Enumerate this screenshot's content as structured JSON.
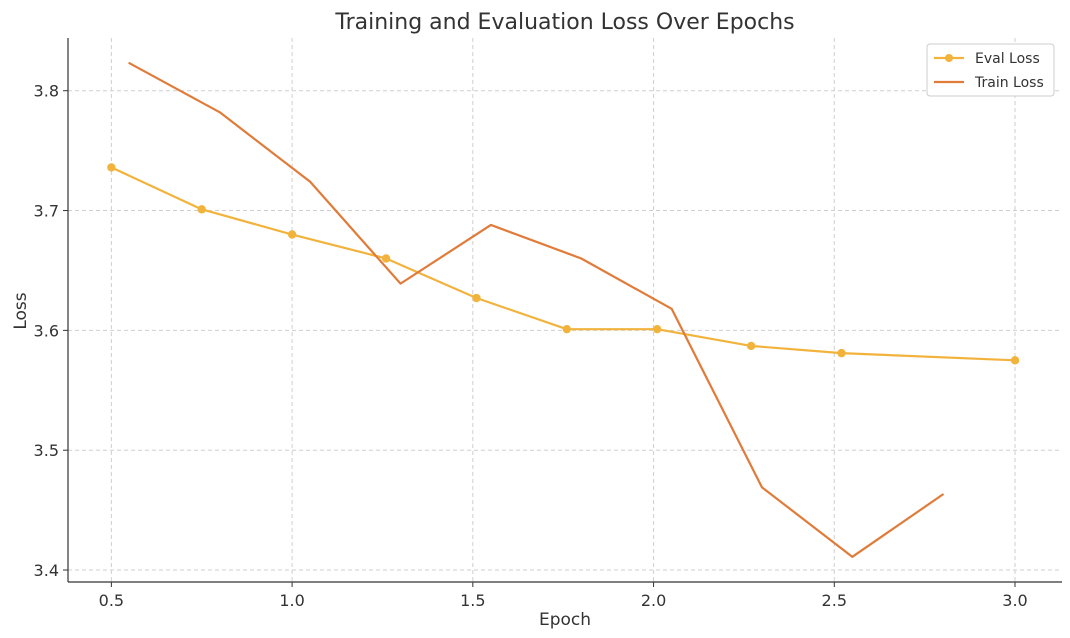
{
  "chart_data": {
    "type": "line",
    "title": "Training and Evaluation Loss Over Epochs",
    "xlabel": "Epoch",
    "ylabel": "Loss",
    "xlim": [
      0.38,
      3.13
    ],
    "ylim": [
      3.39,
      3.844
    ],
    "xticks": [
      0.5,
      1.0,
      1.5,
      2.0,
      2.5,
      3.0
    ],
    "xtick_labels": [
      "0.5",
      "1.0",
      "1.5",
      "2.0",
      "2.5",
      "3.0"
    ],
    "yticks": [
      3.4,
      3.5,
      3.6,
      3.7,
      3.8
    ],
    "ytick_labels": [
      "3.4",
      "3.5",
      "3.6",
      "3.7",
      "3.8"
    ],
    "grid": true,
    "legend_position": "top-right",
    "series": [
      {
        "name": "Eval Loss",
        "color": "#F2B33D",
        "marker": "circle",
        "x": [
          0.5,
          0.75,
          1.0,
          1.26,
          1.51,
          1.76,
          2.01,
          2.27,
          2.52,
          3.0
        ],
        "y": [
          3.736,
          3.701,
          3.68,
          3.66,
          3.627,
          3.601,
          3.601,
          3.587,
          3.581,
          3.575
        ]
      },
      {
        "name": "Train Loss",
        "color": "#E07B39",
        "marker": "none",
        "x": [
          0.55,
          0.8,
          1.05,
          1.3,
          1.55,
          1.8,
          2.05,
          2.3,
          2.55,
          2.8
        ],
        "y": [
          3.823,
          3.782,
          3.724,
          3.639,
          3.688,
          3.66,
          3.618,
          3.469,
          3.411,
          3.463
        ]
      }
    ]
  }
}
